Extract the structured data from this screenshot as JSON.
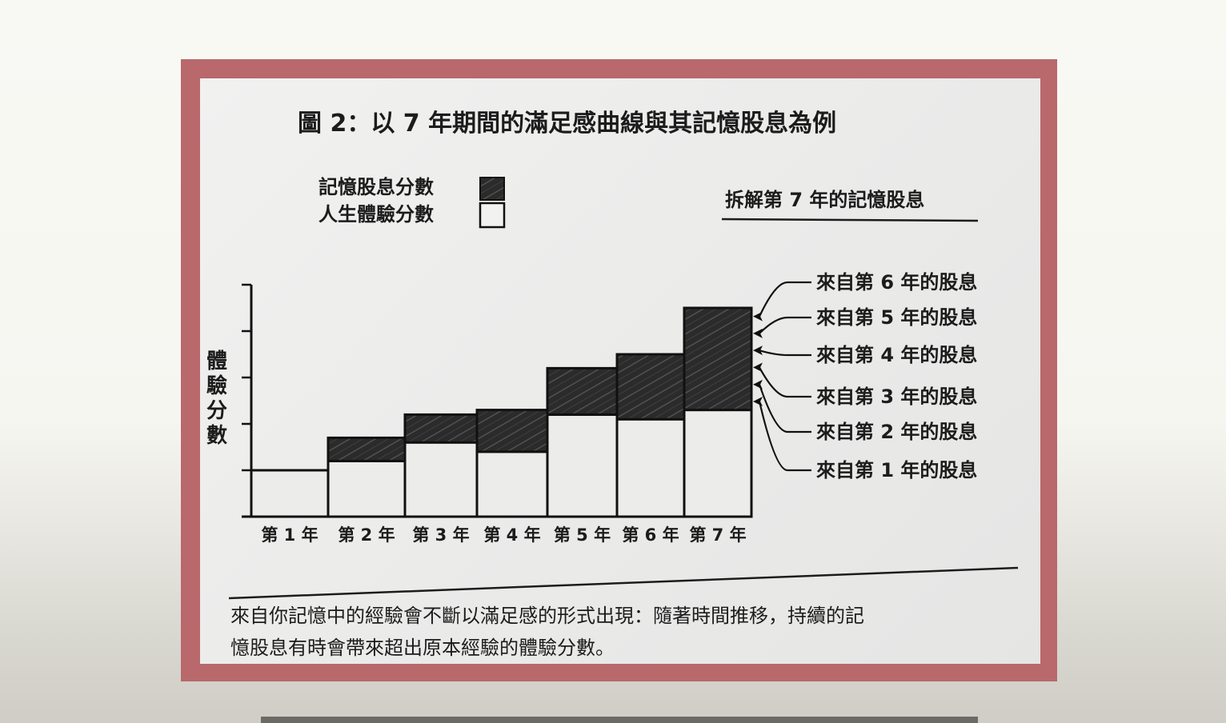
{
  "chart_data": {
    "type": "bar",
    "title": "圖 2：以 7 年期間的滿足感曲線與其記憶股息為例",
    "ylabel": "體驗分數",
    "xlabel": "",
    "categories": [
      "第 1 年",
      "第 2 年",
      "第 3 年",
      "第 4 年",
      "第 5 年",
      "第 6 年",
      "第 7 年"
    ],
    "series": [
      {
        "name": "人生體驗分數",
        "values": [
          1.0,
          1.2,
          1.6,
          1.4,
          2.2,
          2.1,
          2.3
        ],
        "fill": "#ececea"
      },
      {
        "name": "記憶股息分數",
        "values": [
          0.0,
          0.5,
          0.6,
          0.9,
          1.0,
          1.4,
          2.2
        ],
        "fill": "#2b2b2b"
      }
    ],
    "ylim": [
      0,
      5
    ],
    "y_ticks_labeled": false,
    "legend_position": "top-left",
    "stacked": true,
    "annotation": {
      "title": "拆解第 7 年的記憶股息",
      "labels": [
        "來自第 6 年的股息",
        "來自第 5 年的股息",
        "來自第 4 年的股息",
        "來自第 3 年的股息",
        "來自第 2 年的股息",
        "來自第 1 年的股息"
      ]
    },
    "caption": [
      "來自你記憶中的經驗會不斷以滿足感的形式出現：隨著時間推移，持續的記",
      "憶股息有時會帶來超出原本經驗的體驗分數。"
    ]
  },
  "colors": {
    "frame": "#b9686c",
    "page": "#ececea",
    "ink": "#1c1c1c",
    "dividend": "#2b2b2b"
  }
}
